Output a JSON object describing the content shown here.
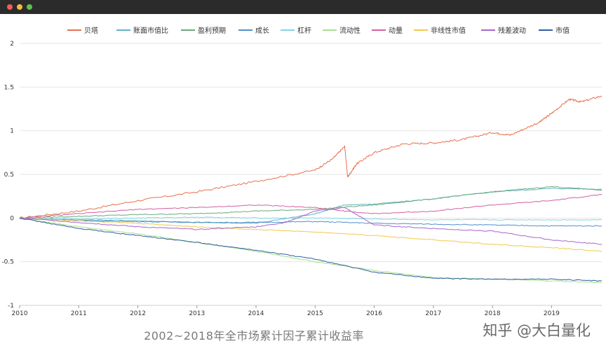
{
  "window": {
    "title": ""
  },
  "caption": "2002~2018年全市场累计因子累计收益率",
  "watermark": "知乎 @大白量化",
  "chart_data": {
    "type": "line",
    "title": "",
    "xlabel": "",
    "ylabel": "",
    "xlim": [
      2010,
      2019.85
    ],
    "ylim": [
      -1,
      2
    ],
    "xticks": [
      "2010",
      "2011",
      "2012",
      "2013",
      "2014",
      "2015",
      "2016",
      "2017",
      "2018",
      "2019"
    ],
    "yticks": [
      "2",
      "1.5",
      "1",
      "0.5",
      "0",
      "-0.5",
      "-1"
    ],
    "grid": true,
    "legend_position": "top",
    "series": [
      {
        "name": "贝塔",
        "color": "#e8704f",
        "x": [
          2010,
          2011,
          2012,
          2013,
          2014,
          2015,
          2015.3,
          2015.5,
          2015.55,
          2015.7,
          2016,
          2016.5,
          2017,
          2017.5,
          2018,
          2018.3,
          2018.8,
          2019,
          2019.3,
          2019.5,
          2019.85
        ],
        "y": [
          0,
          0.08,
          0.2,
          0.3,
          0.42,
          0.55,
          0.68,
          0.82,
          0.47,
          0.62,
          0.75,
          0.85,
          0.86,
          0.9,
          0.98,
          0.95,
          1.1,
          1.2,
          1.36,
          1.33,
          1.4
        ]
      },
      {
        "name": "账面市值比",
        "color": "#5fb3c2",
        "x": [
          2010,
          2011,
          2012,
          2013,
          2014,
          2015,
          2015.5,
          2016,
          2017,
          2018,
          2019,
          2019.85
        ],
        "y": [
          0,
          -0.02,
          -0.03,
          -0.05,
          -0.06,
          0.05,
          0.15,
          0.16,
          0.22,
          0.3,
          0.34,
          0.33
        ]
      },
      {
        "name": "盈利预期",
        "color": "#6aaa7a",
        "x": [
          2010,
          2011,
          2012,
          2013,
          2014,
          2015,
          2016,
          2017,
          2018,
          2019,
          2019.85
        ],
        "y": [
          0,
          0.02,
          0.04,
          0.05,
          0.08,
          0.1,
          0.15,
          0.22,
          0.3,
          0.36,
          0.32
        ]
      },
      {
        "name": "成长",
        "color": "#4f8fc9",
        "x": [
          2010,
          2011,
          2012,
          2013,
          2014,
          2015,
          2016,
          2017,
          2018,
          2019,
          2019.85
        ],
        "y": [
          0,
          -0.03,
          -0.04,
          -0.05,
          -0.05,
          -0.04,
          -0.06,
          -0.07,
          -0.08,
          -0.09,
          -0.09
        ]
      },
      {
        "name": "杠杆",
        "color": "#7fd6e6",
        "x": [
          2010,
          2011,
          2012,
          2013,
          2014,
          2015,
          2016,
          2017,
          2018,
          2019,
          2019.85
        ],
        "y": [
          0,
          -0.01,
          0.0,
          0.01,
          0.0,
          0.0,
          -0.01,
          -0.02,
          -0.02,
          -0.02,
          -0.02
        ]
      },
      {
        "name": "流动性",
        "color": "#a6e08c",
        "x": [
          2010,
          2011,
          2012,
          2013,
          2014,
          2015,
          2016,
          2017,
          2018,
          2019,
          2019.85
        ],
        "y": [
          0,
          -0.1,
          -0.18,
          -0.28,
          -0.38,
          -0.5,
          -0.6,
          -0.68,
          -0.7,
          -0.72,
          -0.74
        ]
      },
      {
        "name": "动量",
        "color": "#d45fa0",
        "x": [
          2010,
          2011,
          2012,
          2013,
          2014,
          2015,
          2015.5,
          2016,
          2017,
          2018,
          2019,
          2019.85
        ],
        "y": [
          0,
          0.05,
          0.1,
          0.12,
          0.15,
          0.12,
          0.08,
          0.05,
          0.08,
          0.15,
          0.2,
          0.27
        ]
      },
      {
        "name": "非线性市值",
        "color": "#f2c84b",
        "x": [
          2010,
          2011,
          2012,
          2013,
          2014,
          2015,
          2016,
          2017,
          2018,
          2019,
          2019.85
        ],
        "y": [
          0,
          -0.03,
          -0.06,
          -0.1,
          -0.13,
          -0.16,
          -0.2,
          -0.25,
          -0.3,
          -0.34,
          -0.38
        ]
      },
      {
        "name": "残差波动",
        "color": "#a866cc",
        "x": [
          2010,
          2011,
          2012,
          2013,
          2014,
          2014.5,
          2015,
          2015.5,
          2016,
          2017,
          2018,
          2019,
          2019.85
        ],
        "y": [
          0,
          -0.05,
          -0.1,
          -0.13,
          -0.1,
          -0.05,
          0.08,
          0.12,
          -0.08,
          -0.12,
          -0.15,
          -0.25,
          -0.3
        ]
      },
      {
        "name": "市值",
        "color": "#2f5f9e",
        "x": [
          2010,
          2011,
          2012,
          2013,
          2014,
          2015,
          2016,
          2017,
          2018,
          2019,
          2019.85
        ],
        "y": [
          0,
          -0.12,
          -0.2,
          -0.28,
          -0.37,
          -0.47,
          -0.62,
          -0.69,
          -0.7,
          -0.7,
          -0.72
        ]
      }
    ]
  }
}
